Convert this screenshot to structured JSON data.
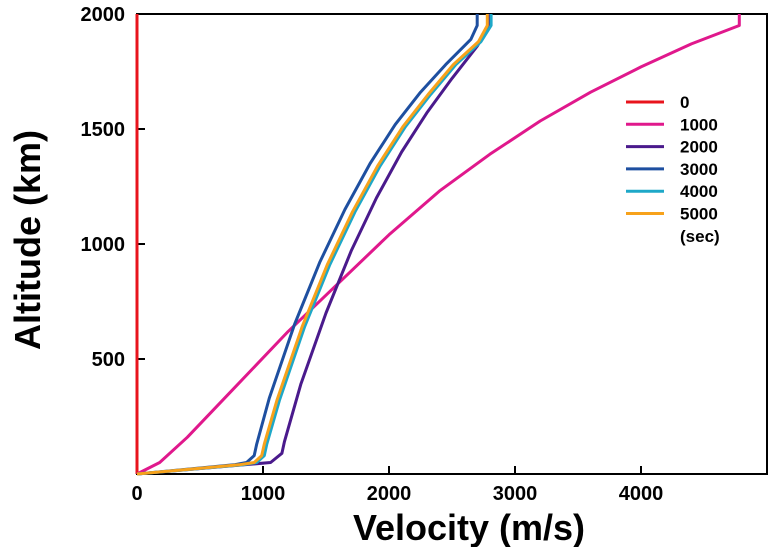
{
  "chart_data": {
    "type": "line",
    "xlabel": "Velocity (m/s)",
    "ylabel": "Altitude (km)",
    "xlim": [
      0,
      5000
    ],
    "ylim": [
      0,
      2000
    ],
    "xticks": [
      0,
      1000,
      2000,
      3000,
      4000
    ],
    "yticks": [
      500,
      1000,
      1500,
      2000
    ],
    "grid": false,
    "legend_position": "right",
    "legend_unit": "(sec)",
    "series": [
      {
        "name": "0",
        "color": "#e8141c",
        "x": [
          0,
          0,
          0
        ],
        "y": [
          0,
          1000,
          2000
        ]
      },
      {
        "name": "1000",
        "color": "#e0188c",
        "x": [
          0,
          180,
          400,
          800,
          1200,
          1600,
          2000,
          2400,
          2800,
          3200,
          3600,
          4000,
          4400,
          4780,
          4780
        ],
        "y": [
          0,
          50,
          160,
          390,
          620,
          830,
          1040,
          1230,
          1390,
          1535,
          1660,
          1770,
          1870,
          1950,
          2000
        ]
      },
      {
        "name": "2000",
        "color": "#4a1a8c",
        "x": [
          0,
          850,
          1060,
          1150,
          1170,
          1300,
          1500,
          1700,
          1900,
          2100,
          2300,
          2500,
          2700,
          2800,
          2800
        ],
        "y": [
          0,
          40,
          50,
          90,
          140,
          390,
          700,
          970,
          1200,
          1400,
          1570,
          1720,
          1860,
          1950,
          2000
        ]
      },
      {
        "name": "3000",
        "color": "#1e4fa0",
        "x": [
          0,
          770,
          870,
          930,
          950,
          1050,
          1250,
          1450,
          1650,
          1850,
          2050,
          2250,
          2450,
          2650,
          2700,
          2700
        ],
        "y": [
          0,
          40,
          50,
          80,
          130,
          330,
          650,
          920,
          1150,
          1350,
          1520,
          1660,
          1780,
          1890,
          1950,
          2000
        ]
      },
      {
        "name": "4000",
        "color": "#1ea8c8",
        "x": [
          0,
          840,
          950,
          1010,
          1030,
          1130,
          1330,
          1530,
          1730,
          1930,
          2130,
          2330,
          2530,
          2730,
          2810,
          2810
        ],
        "y": [
          0,
          40,
          50,
          80,
          130,
          320,
          640,
          910,
          1140,
          1340,
          1510,
          1650,
          1780,
          1880,
          1950,
          2000
        ]
      },
      {
        "name": "5000",
        "color": "#f7a21b",
        "x": [
          0,
          810,
          930,
          990,
          1010,
          1110,
          1310,
          1510,
          1710,
          1910,
          2110,
          2310,
          2510,
          2710,
          2780,
          2780
        ],
        "y": [
          0,
          40,
          50,
          80,
          130,
          320,
          640,
          910,
          1140,
          1340,
          1510,
          1650,
          1780,
          1880,
          1950,
          2000
        ]
      }
    ]
  }
}
